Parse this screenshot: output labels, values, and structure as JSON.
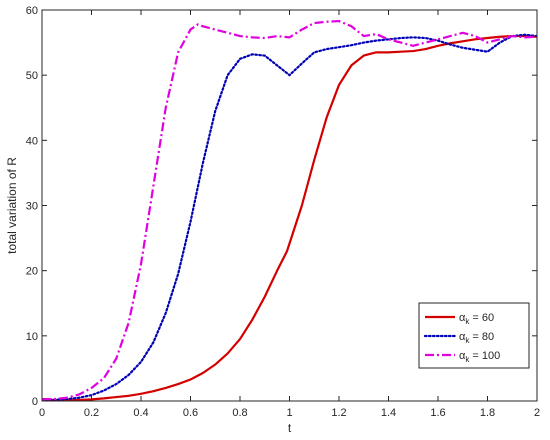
{
  "chart_data": {
    "type": "line",
    "title": "",
    "xlabel": "t",
    "ylabel": "total variation of R",
    "xlim": [
      0,
      2
    ],
    "ylim": [
      0,
      60
    ],
    "x_ticks": [
      "0",
      "0.2",
      "0.4",
      "0.6",
      "0.8",
      "1",
      "1.2",
      "1.4",
      "1.6",
      "1.8",
      "2"
    ],
    "y_ticks": [
      "0",
      "10",
      "20",
      "30",
      "40",
      "50",
      "60"
    ],
    "grid": false,
    "legend_position": "bottom-right",
    "series": [
      {
        "name": "αk = 60",
        "legend_symbol": "α",
        "legend_subscript": "k",
        "legend_value": " = 60",
        "color": "#d40000",
        "line_style": "solid",
        "x": [
          0,
          0.05,
          0.1,
          0.15,
          0.2,
          0.25,
          0.3,
          0.35,
          0.4,
          0.45,
          0.5,
          0.55,
          0.6,
          0.65,
          0.7,
          0.75,
          0.8,
          0.85,
          0.9,
          0.95,
          0.99,
          1.05,
          1.1,
          1.15,
          1.2,
          1.25,
          1.3,
          1.35,
          1.4,
          1.45,
          1.5,
          1.55,
          1.6,
          1.65,
          1.7,
          1.75,
          1.8,
          1.85,
          1.9,
          1.95,
          2.0
        ],
        "y": [
          0.3,
          0.1,
          0.1,
          0.15,
          0.25,
          0.4,
          0.6,
          0.8,
          1.1,
          1.5,
          2.0,
          2.6,
          3.3,
          4.3,
          5.6,
          7.3,
          9.5,
          12.5,
          16.0,
          20.0,
          23.0,
          30.0,
          37.0,
          43.5,
          48.5,
          51.5,
          53.0,
          53.5,
          53.5,
          53.6,
          53.7,
          54.0,
          54.5,
          54.9,
          55.2,
          55.5,
          55.7,
          55.9,
          56.0,
          56.0,
          55.9
        ]
      },
      {
        "name": "αk = 80",
        "legend_symbol": "α",
        "legend_subscript": "k",
        "legend_value": " = 80",
        "color": "#0000b4",
        "line_style": "dotted",
        "x": [
          0,
          0.05,
          0.1,
          0.15,
          0.2,
          0.25,
          0.3,
          0.35,
          0.4,
          0.45,
          0.5,
          0.55,
          0.6,
          0.65,
          0.7,
          0.75,
          0.8,
          0.85,
          0.9,
          0.95,
          1.0,
          1.05,
          1.1,
          1.15,
          1.2,
          1.25,
          1.3,
          1.35,
          1.4,
          1.45,
          1.5,
          1.55,
          1.6,
          1.65,
          1.7,
          1.75,
          1.8,
          1.85,
          1.9,
          1.95,
          2.0
        ],
        "y": [
          0.3,
          0.2,
          0.3,
          0.5,
          0.9,
          1.6,
          2.6,
          4.0,
          6.0,
          9.0,
          13.5,
          19.5,
          27.5,
          36.5,
          44.5,
          50.0,
          52.5,
          53.2,
          53.0,
          51.5,
          50.0,
          51.8,
          53.5,
          54.0,
          54.3,
          54.6,
          55.0,
          55.3,
          55.5,
          55.7,
          55.8,
          55.7,
          55.3,
          54.7,
          54.2,
          53.9,
          53.6,
          55.0,
          56.0,
          56.2,
          56.0
        ]
      },
      {
        "name": "αk = 100",
        "legend_symbol": "α",
        "legend_subscript": "k",
        "legend_value": " = 100",
        "color": "#e000e0",
        "line_style": "dashdot",
        "x": [
          0,
          0.05,
          0.1,
          0.15,
          0.2,
          0.25,
          0.3,
          0.35,
          0.4,
          0.45,
          0.5,
          0.55,
          0.6,
          0.63,
          0.65,
          0.7,
          0.75,
          0.8,
          0.85,
          0.9,
          0.95,
          1.0,
          1.05,
          1.1,
          1.15,
          1.2,
          1.25,
          1.3,
          1.35,
          1.4,
          1.45,
          1.5,
          1.55,
          1.6,
          1.65,
          1.7,
          1.75,
          1.8,
          1.85,
          1.9,
          1.95,
          2.0
        ],
        "y": [
          0.3,
          0.3,
          0.5,
          1.0,
          2.0,
          3.5,
          6.5,
          12.0,
          21.0,
          33.0,
          45.0,
          53.5,
          57.0,
          57.8,
          57.5,
          57.0,
          56.5,
          56.0,
          55.8,
          55.7,
          56.0,
          55.8,
          57.0,
          58.0,
          58.2,
          58.3,
          57.5,
          56.0,
          56.3,
          55.5,
          55.0,
          54.5,
          55.0,
          55.5,
          56.0,
          56.5,
          56.0,
          55.0,
          55.5,
          56.0,
          55.8,
          55.9
        ]
      }
    ]
  }
}
